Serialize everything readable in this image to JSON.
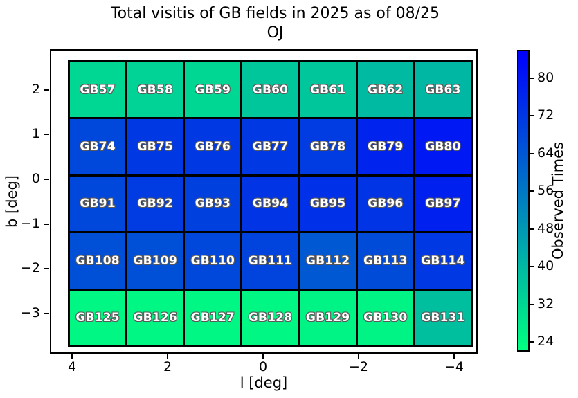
{
  "chart_data": {
    "type": "heatmap",
    "title": "Total visitis of GB fields in 2025 as of 08/25",
    "subtitle": "OJ",
    "xlabel": "l [deg]",
    "ylabel": "b [deg]",
    "x_axis_inverted": true,
    "x_ticks": [
      {
        "value": 4,
        "label": "4"
      },
      {
        "value": 2,
        "label": "2"
      },
      {
        "value": 0,
        "label": "0"
      },
      {
        "value": -2,
        "label": "−2"
      },
      {
        "value": -4,
        "label": "−4"
      }
    ],
    "y_ticks": [
      {
        "value": 2,
        "label": "2"
      },
      {
        "value": 1,
        "label": "1"
      },
      {
        "value": 0,
        "label": "0"
      },
      {
        "value": -1,
        "label": "−1"
      },
      {
        "value": -2,
        "label": "−2"
      },
      {
        "value": -3,
        "label": "−3"
      }
    ],
    "colorbar": {
      "label": "Observed Times",
      "ticks": [
        24,
        32,
        40,
        48,
        56,
        64,
        72,
        80
      ],
      "vmin": 22,
      "vmax": 86,
      "colormap": "winter_r",
      "color_low": "#00ff80",
      "color_high": "#0000ff"
    },
    "grid": {
      "columns": 7,
      "rows": 5
    },
    "rows": [
      {
        "fields": [
          {
            "label": "GB57",
            "value": 32
          },
          {
            "label": "GB58",
            "value": 33
          },
          {
            "label": "GB59",
            "value": 32
          },
          {
            "label": "GB60",
            "value": 36
          },
          {
            "label": "GB61",
            "value": 36
          },
          {
            "label": "GB62",
            "value": 39
          },
          {
            "label": "GB63",
            "value": 40
          }
        ]
      },
      {
        "fields": [
          {
            "label": "GB74",
            "value": 68
          },
          {
            "label": "GB75",
            "value": 72
          },
          {
            "label": "GB76",
            "value": 72
          },
          {
            "label": "GB77",
            "value": 72
          },
          {
            "label": "GB78",
            "value": 71
          },
          {
            "label": "GB79",
            "value": 77
          },
          {
            "label": "GB80",
            "value": 80
          }
        ]
      },
      {
        "fields": [
          {
            "label": "GB91",
            "value": 68
          },
          {
            "label": "GB92",
            "value": 71
          },
          {
            "label": "GB93",
            "value": 70
          },
          {
            "label": "GB94",
            "value": 73
          },
          {
            "label": "GB95",
            "value": 74
          },
          {
            "label": "GB96",
            "value": 73
          },
          {
            "label": "GB97",
            "value": 78
          }
        ]
      },
      {
        "fields": [
          {
            "label": "GB108",
            "value": 66
          },
          {
            "label": "GB109",
            "value": 66
          },
          {
            "label": "GB110",
            "value": 68
          },
          {
            "label": "GB111",
            "value": 69
          },
          {
            "label": "GB112",
            "value": 64
          },
          {
            "label": "GB113",
            "value": 67
          },
          {
            "label": "GB114",
            "value": 72
          }
        ]
      },
      {
        "fields": [
          {
            "label": "GB125",
            "value": 24
          },
          {
            "label": "GB126",
            "value": 24
          },
          {
            "label": "GB127",
            "value": 24
          },
          {
            "label": "GB128",
            "value": 24
          },
          {
            "label": "GB129",
            "value": 25
          },
          {
            "label": "GB130",
            "value": 25
          },
          {
            "label": "GB131",
            "value": 38
          }
        ]
      }
    ]
  }
}
